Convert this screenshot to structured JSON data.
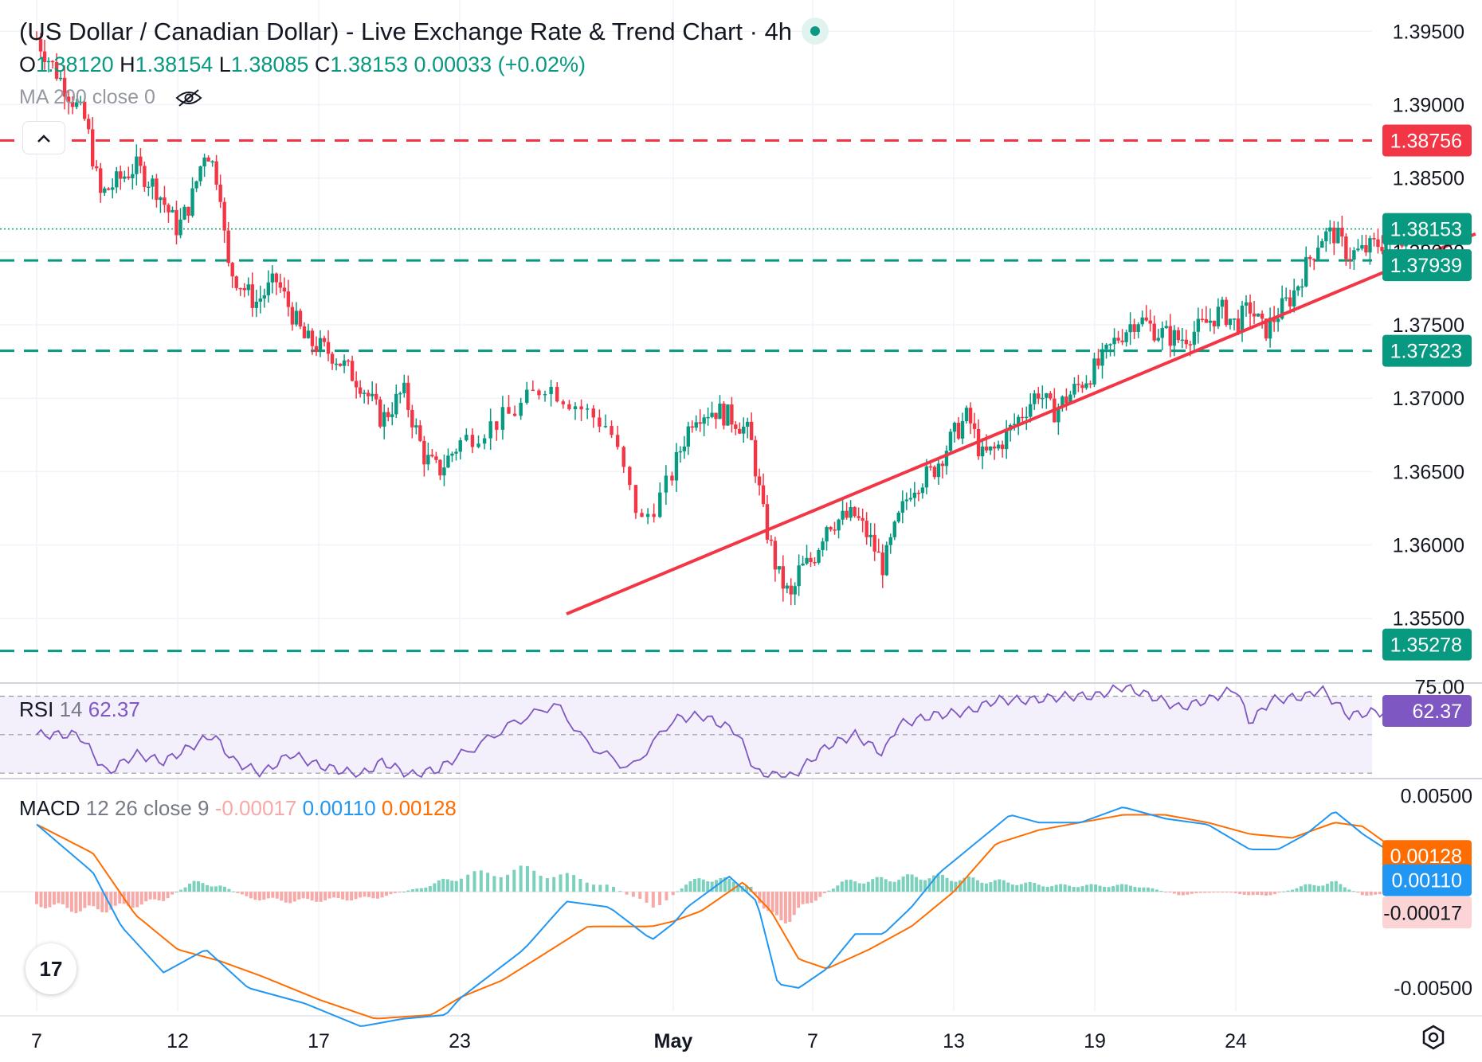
{
  "header": {
    "title": "(US Dollar / Canadian Dollar) - Live Exchange Rate & Trend Chart · 4h",
    "ohlc": {
      "o_label": "O",
      "o": "1.38120",
      "h_label": "H",
      "h": "1.38154",
      "l_label": "L",
      "l": "1.38085",
      "c_label": "C",
      "c": "1.38153",
      "change": "0.00033 (+0.02%)"
    },
    "ma_label": "MA 200 close 0",
    "collapse_icon": "chevron-up-icon",
    "eye_icon": "eye-off-icon"
  },
  "colors": {
    "up": "#089981",
    "down": "#f23645",
    "rsi": "#7e57c2",
    "macd": "#2196f3",
    "signal": "#ff6d00",
    "resistance": "#f23645",
    "support": "#089981"
  },
  "chart_data": [
    {
      "type": "candlestick",
      "title": "(US Dollar / Canadian Dollar) - Live Exchange Rate & Trend Chart · 4h",
      "interval": "4h",
      "y_ticks": [
        "1.39500",
        "1.39000",
        "1.38500",
        "1.38000",
        "1.37500",
        "1.37000",
        "1.36500",
        "1.36000",
        "1.35500"
      ],
      "ylim": [
        1.3507,
        1.3967
      ],
      "x_ticks": [
        "7",
        "12",
        "17",
        "23",
        "May",
        "7",
        "13",
        "19",
        "24"
      ],
      "price_levels": [
        {
          "value": 1.38756,
          "label": "1.38756",
          "style": "dashed",
          "color": "#f23645"
        },
        {
          "value": 1.38153,
          "label": "1.38153",
          "style": "dotted",
          "color": "#089981"
        },
        {
          "value": 1.37939,
          "label": "1.37939",
          "style": "dashed",
          "color": "#089981"
        },
        {
          "value": 1.37323,
          "label": "1.37323",
          "style": "dashed",
          "color": "#089981"
        },
        {
          "value": 1.35278,
          "label": "1.35278",
          "style": "dashed",
          "color": "#089981"
        }
      ],
      "trendline": {
        "from": [
          3.5,
          1.3553
        ],
        "to": [
          9.7,
          1.3812
        ],
        "color": "#f23645"
      },
      "price_path": [
        [
          0.0,
          1.3945
        ],
        [
          0.35,
          1.3888
        ],
        [
          0.45,
          1.3838
        ],
        [
          0.7,
          1.3858
        ],
        [
          0.85,
          1.3843
        ],
        [
          1.0,
          1.3815
        ],
        [
          1.1,
          1.3836
        ],
        [
          1.2,
          1.3872
        ],
        [
          1.3,
          1.3845
        ],
        [
          1.35,
          1.379
        ],
        [
          1.55,
          1.3765
        ],
        [
          1.7,
          1.378
        ],
        [
          1.9,
          1.374
        ],
        [
          2.1,
          1.373
        ],
        [
          2.3,
          1.371
        ],
        [
          2.45,
          1.3685
        ],
        [
          2.6,
          1.3705
        ],
        [
          2.75,
          1.366
        ],
        [
          2.85,
          1.365
        ],
        [
          3.0,
          1.367
        ],
        [
          3.15,
          1.3682
        ],
        [
          3.25,
          1.369
        ],
        [
          3.4,
          1.371
        ],
        [
          3.55,
          1.3695
        ],
        [
          3.7,
          1.368
        ],
        [
          3.8,
          1.3635
        ],
        [
          3.85,
          1.3615
        ],
        [
          3.95,
          1.3635
        ],
        [
          4.05,
          1.3665
        ],
        [
          4.15,
          1.369
        ],
        [
          4.3,
          1.3692
        ],
        [
          4.45,
          1.3685
        ],
        [
          4.55,
          1.3675
        ],
        [
          4.65,
          1.3618
        ],
        [
          4.75,
          1.358
        ],
        [
          4.85,
          1.3562
        ],
        [
          4.9,
          1.3582
        ],
        [
          5.0,
          1.359
        ],
        [
          5.1,
          1.3615
        ],
        [
          5.3,
          1.362
        ],
        [
          5.4,
          1.3605
        ],
        [
          5.5,
          1.3585
        ],
        [
          5.6,
          1.3615
        ],
        [
          5.7,
          1.364
        ],
        [
          5.85,
          1.365
        ],
        [
          6.0,
          1.3675
        ],
        [
          6.1,
          1.3688
        ],
        [
          6.2,
          1.366
        ],
        [
          6.3,
          1.3665
        ],
        [
          6.45,
          1.3685
        ],
        [
          6.6,
          1.3705
        ],
        [
          6.7,
          1.369
        ],
        [
          6.8,
          1.37
        ],
        [
          6.95,
          1.3715
        ],
        [
          7.05,
          1.3725
        ],
        [
          7.15,
          1.374
        ],
        [
          7.3,
          1.3755
        ],
        [
          7.45,
          1.3745
        ],
        [
          7.6,
          1.374
        ],
        [
          7.75,
          1.3748
        ],
        [
          7.9,
          1.376
        ],
        [
          8.0,
          1.375
        ],
        [
          8.1,
          1.3762
        ],
        [
          8.2,
          1.3745
        ],
        [
          8.3,
          1.3758
        ],
        [
          8.4,
          1.377
        ],
        [
          8.5,
          1.379
        ],
        [
          8.6,
          1.381
        ],
        [
          8.7,
          1.3812
        ],
        [
          8.8,
          1.3798
        ],
        [
          8.9,
          1.38
        ],
        [
          9.0,
          1.3805
        ],
        [
          9.1,
          1.3808
        ],
        [
          9.2,
          1.3812
        ],
        [
          9.3,
          1.3815
        ]
      ]
    },
    {
      "type": "line",
      "title": "RSI 14",
      "series": [
        {
          "name": "RSI 14",
          "last": 62.37
        }
      ],
      "visible_tick": "75.00",
      "ylim": [
        28,
        76
      ],
      "bands": [
        70,
        50,
        30
      ],
      "rsi_path": [
        [
          0.0,
          50
        ],
        [
          0.3,
          50
        ],
        [
          0.5,
          30
        ],
        [
          0.7,
          40
        ],
        [
          0.9,
          36
        ],
        [
          1.1,
          44
        ],
        [
          1.25,
          50
        ],
        [
          1.4,
          36
        ],
        [
          1.6,
          30
        ],
        [
          1.8,
          40
        ],
        [
          2.0,
          34
        ],
        [
          2.3,
          29
        ],
        [
          2.45,
          36
        ],
        [
          2.65,
          29
        ],
        [
          2.85,
          32
        ],
        [
          3.05,
          42
        ],
        [
          3.25,
          56
        ],
        [
          3.45,
          66
        ],
        [
          3.6,
          45
        ],
        [
          3.8,
          32
        ],
        [
          4.0,
          58
        ],
        [
          4.2,
          60
        ],
        [
          4.45,
          52
        ],
        [
          4.6,
          30
        ],
        [
          4.85,
          28
        ],
        [
          5.1,
          44
        ],
        [
          5.3,
          50
        ],
        [
          5.5,
          40
        ],
        [
          5.6,
          55
        ],
        [
          5.85,
          60
        ],
        [
          6.1,
          62
        ],
        [
          6.3,
          68
        ],
        [
          6.55,
          68
        ],
        [
          6.8,
          70
        ],
        [
          7.0,
          70
        ],
        [
          7.2,
          75
        ],
        [
          7.4,
          70
        ],
        [
          7.6,
          64
        ],
        [
          7.8,
          68
        ],
        [
          8.0,
          74
        ],
        [
          8.1,
          56
        ],
        [
          8.25,
          68
        ],
        [
          8.5,
          70
        ],
        [
          8.6,
          74
        ],
        [
          8.8,
          60
        ],
        [
          9.0,
          62
        ],
        [
          9.15,
          60
        ],
        [
          9.3,
          62.37
        ]
      ]
    },
    {
      "type": "line",
      "title": "MACD 12 26 close 9",
      "series": [
        {
          "name": "Histogram",
          "last": -0.00017
        },
        {
          "name": "MACD",
          "last": 0.0011
        },
        {
          "name": "Signal",
          "last": 0.00128
        }
      ],
      "y_ticks": [
        "0.00500",
        "-0.00500"
      ],
      "ylim": [
        -0.0062,
        0.0058
      ],
      "macd_path": [
        [
          0.0,
          0.0035
        ],
        [
          0.4,
          0.001
        ],
        [
          0.6,
          -0.0018
        ],
        [
          0.9,
          -0.0042
        ],
        [
          1.2,
          -0.003
        ],
        [
          1.5,
          -0.005
        ],
        [
          1.9,
          -0.0058
        ],
        [
          2.3,
          -0.007
        ],
        [
          2.6,
          -0.0066
        ],
        [
          2.9,
          -0.0064
        ],
        [
          3.3,
          -0.003
        ],
        [
          3.5,
          -0.0005
        ],
        [
          3.7,
          -0.0008
        ],
        [
          3.9,
          -0.0025
        ],
        [
          4.1,
          -0.0008
        ],
        [
          4.4,
          0.0008
        ],
        [
          4.6,
          -0.0005
        ],
        [
          4.75,
          -0.0048
        ],
        [
          4.9,
          -0.005
        ],
        [
          5.1,
          -0.004
        ],
        [
          5.3,
          -0.0022
        ],
        [
          5.5,
          -0.0022
        ],
        [
          5.7,
          -0.0008
        ],
        [
          5.9,
          0.001
        ],
        [
          6.1,
          0.0022
        ],
        [
          6.4,
          0.004
        ],
        [
          6.6,
          0.0036
        ],
        [
          6.9,
          0.0036
        ],
        [
          7.2,
          0.0044
        ],
        [
          7.5,
          0.0038
        ],
        [
          7.8,
          0.0035
        ],
        [
          8.1,
          0.0022
        ],
        [
          8.3,
          0.0022
        ],
        [
          8.5,
          0.003
        ],
        [
          8.7,
          0.0042
        ],
        [
          8.9,
          0.003
        ],
        [
          9.3,
          0.0011
        ]
      ],
      "signal_path": [
        [
          0.0,
          0.0035
        ],
        [
          0.4,
          0.002
        ],
        [
          0.7,
          -0.0012
        ],
        [
          1.0,
          -0.003
        ],
        [
          1.3,
          -0.0036
        ],
        [
          1.6,
          -0.0044
        ],
        [
          2.0,
          -0.0056
        ],
        [
          2.4,
          -0.0066
        ],
        [
          2.8,
          -0.0064
        ],
        [
          3.2,
          -0.0046
        ],
        [
          3.6,
          -0.0018
        ],
        [
          3.9,
          -0.0018
        ],
        [
          4.2,
          -0.001
        ],
        [
          4.5,
          0.0005
        ],
        [
          4.7,
          -0.001
        ],
        [
          4.9,
          -0.0035
        ],
        [
          5.1,
          -0.004
        ],
        [
          5.4,
          -0.003
        ],
        [
          5.7,
          -0.0018
        ],
        [
          6.0,
          0.0
        ],
        [
          6.3,
          0.0025
        ],
        [
          6.6,
          0.0032
        ],
        [
          6.9,
          0.0036
        ],
        [
          7.2,
          0.004
        ],
        [
          7.5,
          0.004
        ],
        [
          7.8,
          0.0036
        ],
        [
          8.1,
          0.003
        ],
        [
          8.4,
          0.0028
        ],
        [
          8.7,
          0.0036
        ],
        [
          8.9,
          0.0034
        ],
        [
          9.3,
          0.0013
        ]
      ],
      "hist_path": [
        [
          0.0,
          -0.0008
        ],
        [
          0.35,
          -0.0012
        ],
        [
          0.6,
          -0.001
        ],
        [
          0.9,
          -0.0005
        ],
        [
          1.1,
          0.0006
        ],
        [
          1.3,
          0.0004
        ],
        [
          1.5,
          -0.0004
        ],
        [
          1.8,
          -0.0006
        ],
        [
          2.1,
          -0.0005
        ],
        [
          2.4,
          -0.0004
        ],
        [
          2.7,
          0.0002
        ],
        [
          3.0,
          0.001
        ],
        [
          3.3,
          0.0014
        ],
        [
          3.5,
          0.001
        ],
        [
          3.7,
          0.0004
        ],
        [
          3.9,
          -0.001
        ],
        [
          4.1,
          0.0006
        ],
        [
          4.3,
          0.0009
        ],
        [
          4.55,
          0.0004
        ],
        [
          4.7,
          -0.0018
        ],
        [
          4.85,
          -0.0016
        ],
        [
          5.0,
          -0.0006
        ],
        [
          5.2,
          0.0006
        ],
        [
          5.5,
          0.0008
        ],
        [
          5.8,
          0.001
        ],
        [
          6.1,
          0.0008
        ],
        [
          6.4,
          0.0006
        ],
        [
          6.7,
          0.0004
        ],
        [
          7.0,
          0.0004
        ],
        [
          7.3,
          0.0004
        ],
        [
          7.6,
          -0.0002
        ],
        [
          7.9,
          0.0
        ],
        [
          8.2,
          -0.0003
        ],
        [
          8.5,
          0.0004
        ],
        [
          8.7,
          0.0006
        ],
        [
          8.9,
          -0.0002
        ],
        [
          9.3,
          -0.0002
        ]
      ]
    }
  ],
  "axis_badges": {
    "resistance": "1.38756",
    "last_price": "1.38153",
    "support1": "1.37939",
    "support2": "1.37323",
    "support3": "1.35278",
    "rsi_value": "62.37",
    "macd_signal": "0.00128",
    "macd_line": "0.00110",
    "macd_hist": "-0.00017"
  },
  "rsi": {
    "label": "RSI",
    "params": "14",
    "value": "62.37"
  },
  "macd": {
    "label": "MACD",
    "params": "12 26 close 9",
    "hist": "-0.00017",
    "macd": "0.00110",
    "signal": "0.00128"
  },
  "footer": {
    "logo": "17",
    "logo_icon": "tradingview-logo-icon",
    "settings_icon": "settings-gear-icon"
  }
}
